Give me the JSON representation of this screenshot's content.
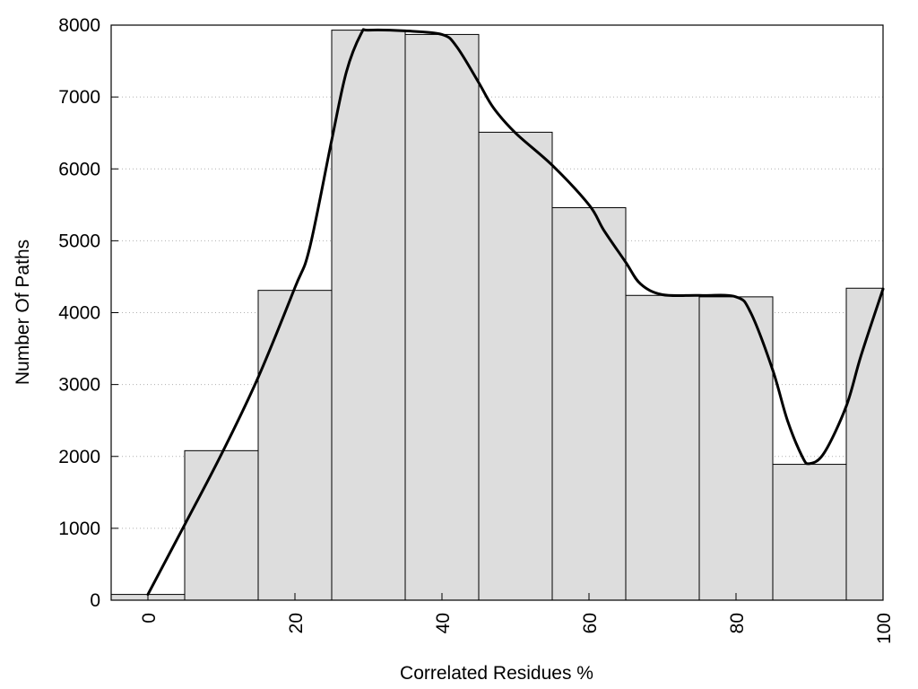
{
  "chart_data": {
    "type": "bar",
    "xlabel": "Correlated Residues %",
    "ylabel": "Number Of Paths",
    "xlim": [
      -5,
      100
    ],
    "ylim": [
      0,
      8000
    ],
    "x_ticks": [
      0,
      20,
      40,
      60,
      80,
      100
    ],
    "y_ticks": [
      0,
      1000,
      2000,
      3000,
      4000,
      5000,
      6000,
      7000,
      8000
    ],
    "grid": "horizontal dotted",
    "bar_color": "#dddddd",
    "bar_edge_color": "#000000",
    "bar_width": 10,
    "bars": [
      {
        "x": 0,
        "value": 80
      },
      {
        "x": 10,
        "value": 2080
      },
      {
        "x": 20,
        "value": 4310
      },
      {
        "x": 30,
        "value": 7930
      },
      {
        "x": 40,
        "value": 7870
      },
      {
        "x": 50,
        "value": 6510
      },
      {
        "x": 60,
        "value": 5460
      },
      {
        "x": 70,
        "value": 4240
      },
      {
        "x": 80,
        "value": 4220
      },
      {
        "x": 90,
        "value": 1890
      },
      {
        "x": 100,
        "value": 4340
      }
    ],
    "curve": [
      [
        0,
        80
      ],
      [
        5,
        1050
      ],
      [
        10,
        2030
      ],
      [
        15,
        3100
      ],
      [
        20,
        4350
      ],
      [
        22,
        4900
      ],
      [
        25,
        6400
      ],
      [
        27,
        7350
      ],
      [
        29,
        7880
      ],
      [
        30,
        7930
      ],
      [
        35,
        7920
      ],
      [
        40,
        7870
      ],
      [
        42,
        7700
      ],
      [
        45,
        7200
      ],
      [
        47,
        6850
      ],
      [
        50,
        6500
      ],
      [
        55,
        6050
      ],
      [
        60,
        5500
      ],
      [
        62,
        5150
      ],
      [
        65,
        4700
      ],
      [
        67,
        4400
      ],
      [
        70,
        4250
      ],
      [
        75,
        4240
      ],
      [
        80,
        4220
      ],
      [
        82,
        4000
      ],
      [
        85,
        3200
      ],
      [
        87,
        2500
      ],
      [
        89,
        2000
      ],
      [
        90,
        1900
      ],
      [
        92,
        2050
      ],
      [
        95,
        2700
      ],
      [
        97,
        3400
      ],
      [
        100,
        4330
      ]
    ]
  }
}
